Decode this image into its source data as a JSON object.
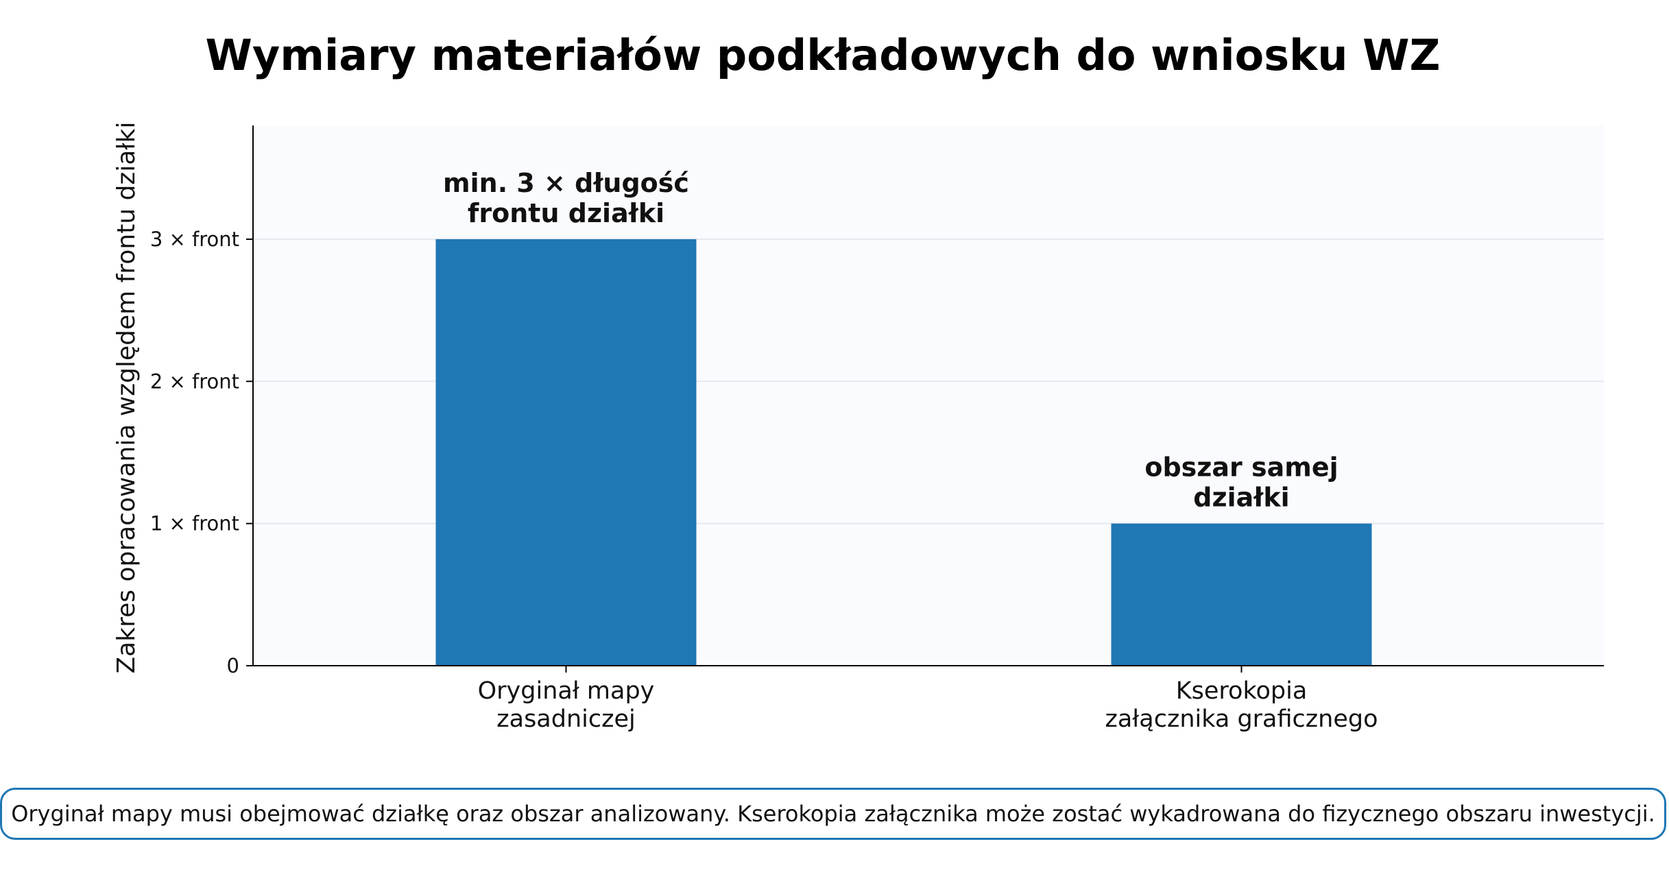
{
  "chart_data": {
    "type": "bar",
    "title": "Wymiary materiałów podkładowych do wniosku WZ",
    "ylabel": "Zakres opracowania względem frontu działki",
    "xlabel": "",
    "categories": [
      [
        "Oryginał mapy",
        "zasadniczej"
      ],
      [
        "Kserokopia",
        "załącznika graficznego"
      ]
    ],
    "values": [
      3,
      1
    ],
    "bar_labels": [
      [
        "min. 3 × długość",
        "frontu działki"
      ],
      [
        "obszar samej",
        "działki"
      ]
    ],
    "yticks": [
      0,
      1,
      2,
      3
    ],
    "ytick_labels": [
      "0",
      "1 × front",
      "2 × front",
      "3 × front"
    ],
    "ylim": [
      0,
      3.8
    ],
    "grid": "horizontal",
    "colors": {
      "bar": "#1f77b4",
      "plot_background": "#fafbfe",
      "grid": "#e6e8ee",
      "note_border": "#1f77b4"
    }
  },
  "note": "Oryginał mapy musi obejmować działkę oraz obszar analizowany. Kserokopia załącznika może zostać wykadrowana do fizycznego obszaru inwestycji."
}
